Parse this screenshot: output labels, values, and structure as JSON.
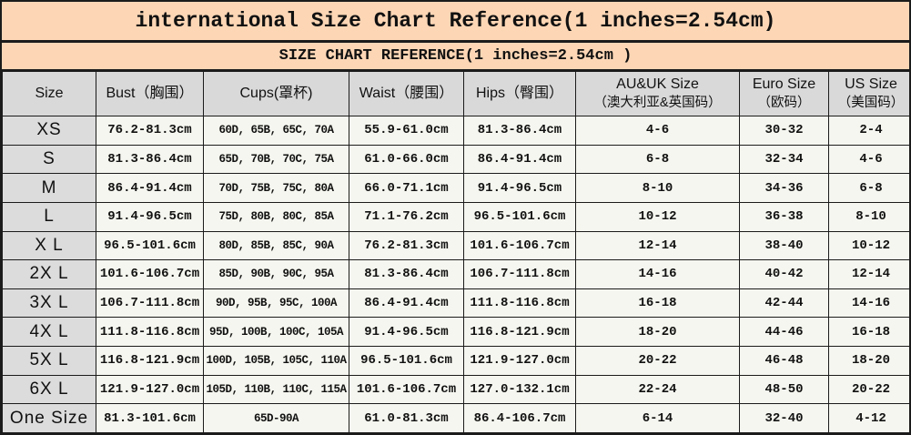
{
  "colors": {
    "band_bg": "#fcd6b5",
    "header_bg": "#d9d9d9",
    "size_col_bg": "#dcdcdc",
    "cell_bg": "#f6f6f0",
    "border": "#1b1b1b",
    "text": "#111111"
  },
  "chart_data": {
    "type": "table",
    "title": "international Size Chart Reference(1 inches=2.54cm)",
    "subtitle": "SIZE CHART REFERENCE(1 inches=2.54cm )",
    "columns": [
      {
        "key": "size",
        "lines": [
          "Size"
        ]
      },
      {
        "key": "bust",
        "lines": [
          "Bust（胸围）"
        ]
      },
      {
        "key": "cups",
        "lines": [
          "Cups(罩杯)"
        ]
      },
      {
        "key": "waist",
        "lines": [
          "Waist（腰围）"
        ]
      },
      {
        "key": "hips",
        "lines": [
          "Hips（臀围）"
        ]
      },
      {
        "key": "au_uk",
        "lines": [
          "AU&UK Size",
          "（澳大利亚&英国码）"
        ]
      },
      {
        "key": "euro",
        "lines": [
          "Euro Size",
          "（欧码）"
        ]
      },
      {
        "key": "us",
        "lines": [
          "US Size",
          "（美国码）"
        ]
      }
    ],
    "rows": [
      {
        "size": "XS",
        "bust": "76.2-81.3cm",
        "cups": "60D, 65B, 65C, 70A",
        "waist": "55.9-61.0cm",
        "hips": "81.3-86.4cm",
        "au_uk": "4-6",
        "euro": "30-32",
        "us": "2-4"
      },
      {
        "size": "S",
        "bust": "81.3-86.4cm",
        "cups": "65D, 70B, 70C, 75A",
        "waist": "61.0-66.0cm",
        "hips": "86.4-91.4cm",
        "au_uk": "6-8",
        "euro": "32-34",
        "us": "4-6"
      },
      {
        "size": "M",
        "bust": "86.4-91.4cm",
        "cups": "70D, 75B, 75C, 80A",
        "waist": "66.0-71.1cm",
        "hips": "91.4-96.5cm",
        "au_uk": "8-10",
        "euro": "34-36",
        "us": "6-8"
      },
      {
        "size": "L",
        "bust": "91.4-96.5cm",
        "cups": "75D, 80B, 80C, 85A",
        "waist": "71.1-76.2cm",
        "hips": "96.5-101.6cm",
        "au_uk": "10-12",
        "euro": "36-38",
        "us": "8-10"
      },
      {
        "size": "X L",
        "bust": "96.5-101.6cm",
        "cups": "80D, 85B, 85C, 90A",
        "waist": "76.2-81.3cm",
        "hips": "101.6-106.7cm",
        "au_uk": "12-14",
        "euro": "38-40",
        "us": "10-12"
      },
      {
        "size": "2X L",
        "bust": "101.6-106.7cm",
        "cups": "85D, 90B, 90C, 95A",
        "waist": "81.3-86.4cm",
        "hips": "106.7-111.8cm",
        "au_uk": "14-16",
        "euro": "40-42",
        "us": "12-14"
      },
      {
        "size": "3X L",
        "bust": "106.7-111.8cm",
        "cups": "90D, 95B, 95C, 100A",
        "waist": "86.4-91.4cm",
        "hips": "111.8-116.8cm",
        "au_uk": "16-18",
        "euro": "42-44",
        "us": "14-16"
      },
      {
        "size": "4X L",
        "bust": "111.8-116.8cm",
        "cups": "95D, 100B, 100C, 105A",
        "waist": "91.4-96.5cm",
        "hips": "116.8-121.9cm",
        "au_uk": "18-20",
        "euro": "44-46",
        "us": "16-18"
      },
      {
        "size": "5X L",
        "bust": "116.8-121.9cm",
        "cups": "100D, 105B, 105C, 110A",
        "waist": "96.5-101.6cm",
        "hips": "121.9-127.0cm",
        "au_uk": "20-22",
        "euro": "46-48",
        "us": "18-20"
      },
      {
        "size": "6X L",
        "bust": "121.9-127.0cm",
        "cups": "105D, 110B, 110C, 115A",
        "waist": "101.6-106.7cm",
        "hips": "127.0-132.1cm",
        "au_uk": "22-24",
        "euro": "48-50",
        "us": "20-22"
      },
      {
        "size": "One Size",
        "bust": "81.3-101.6cm",
        "cups": "65D-90A",
        "waist": "61.0-81.3cm",
        "hips": "86.4-106.7cm",
        "au_uk": "6-14",
        "euro": "32-40",
        "us": "4-12"
      }
    ]
  }
}
